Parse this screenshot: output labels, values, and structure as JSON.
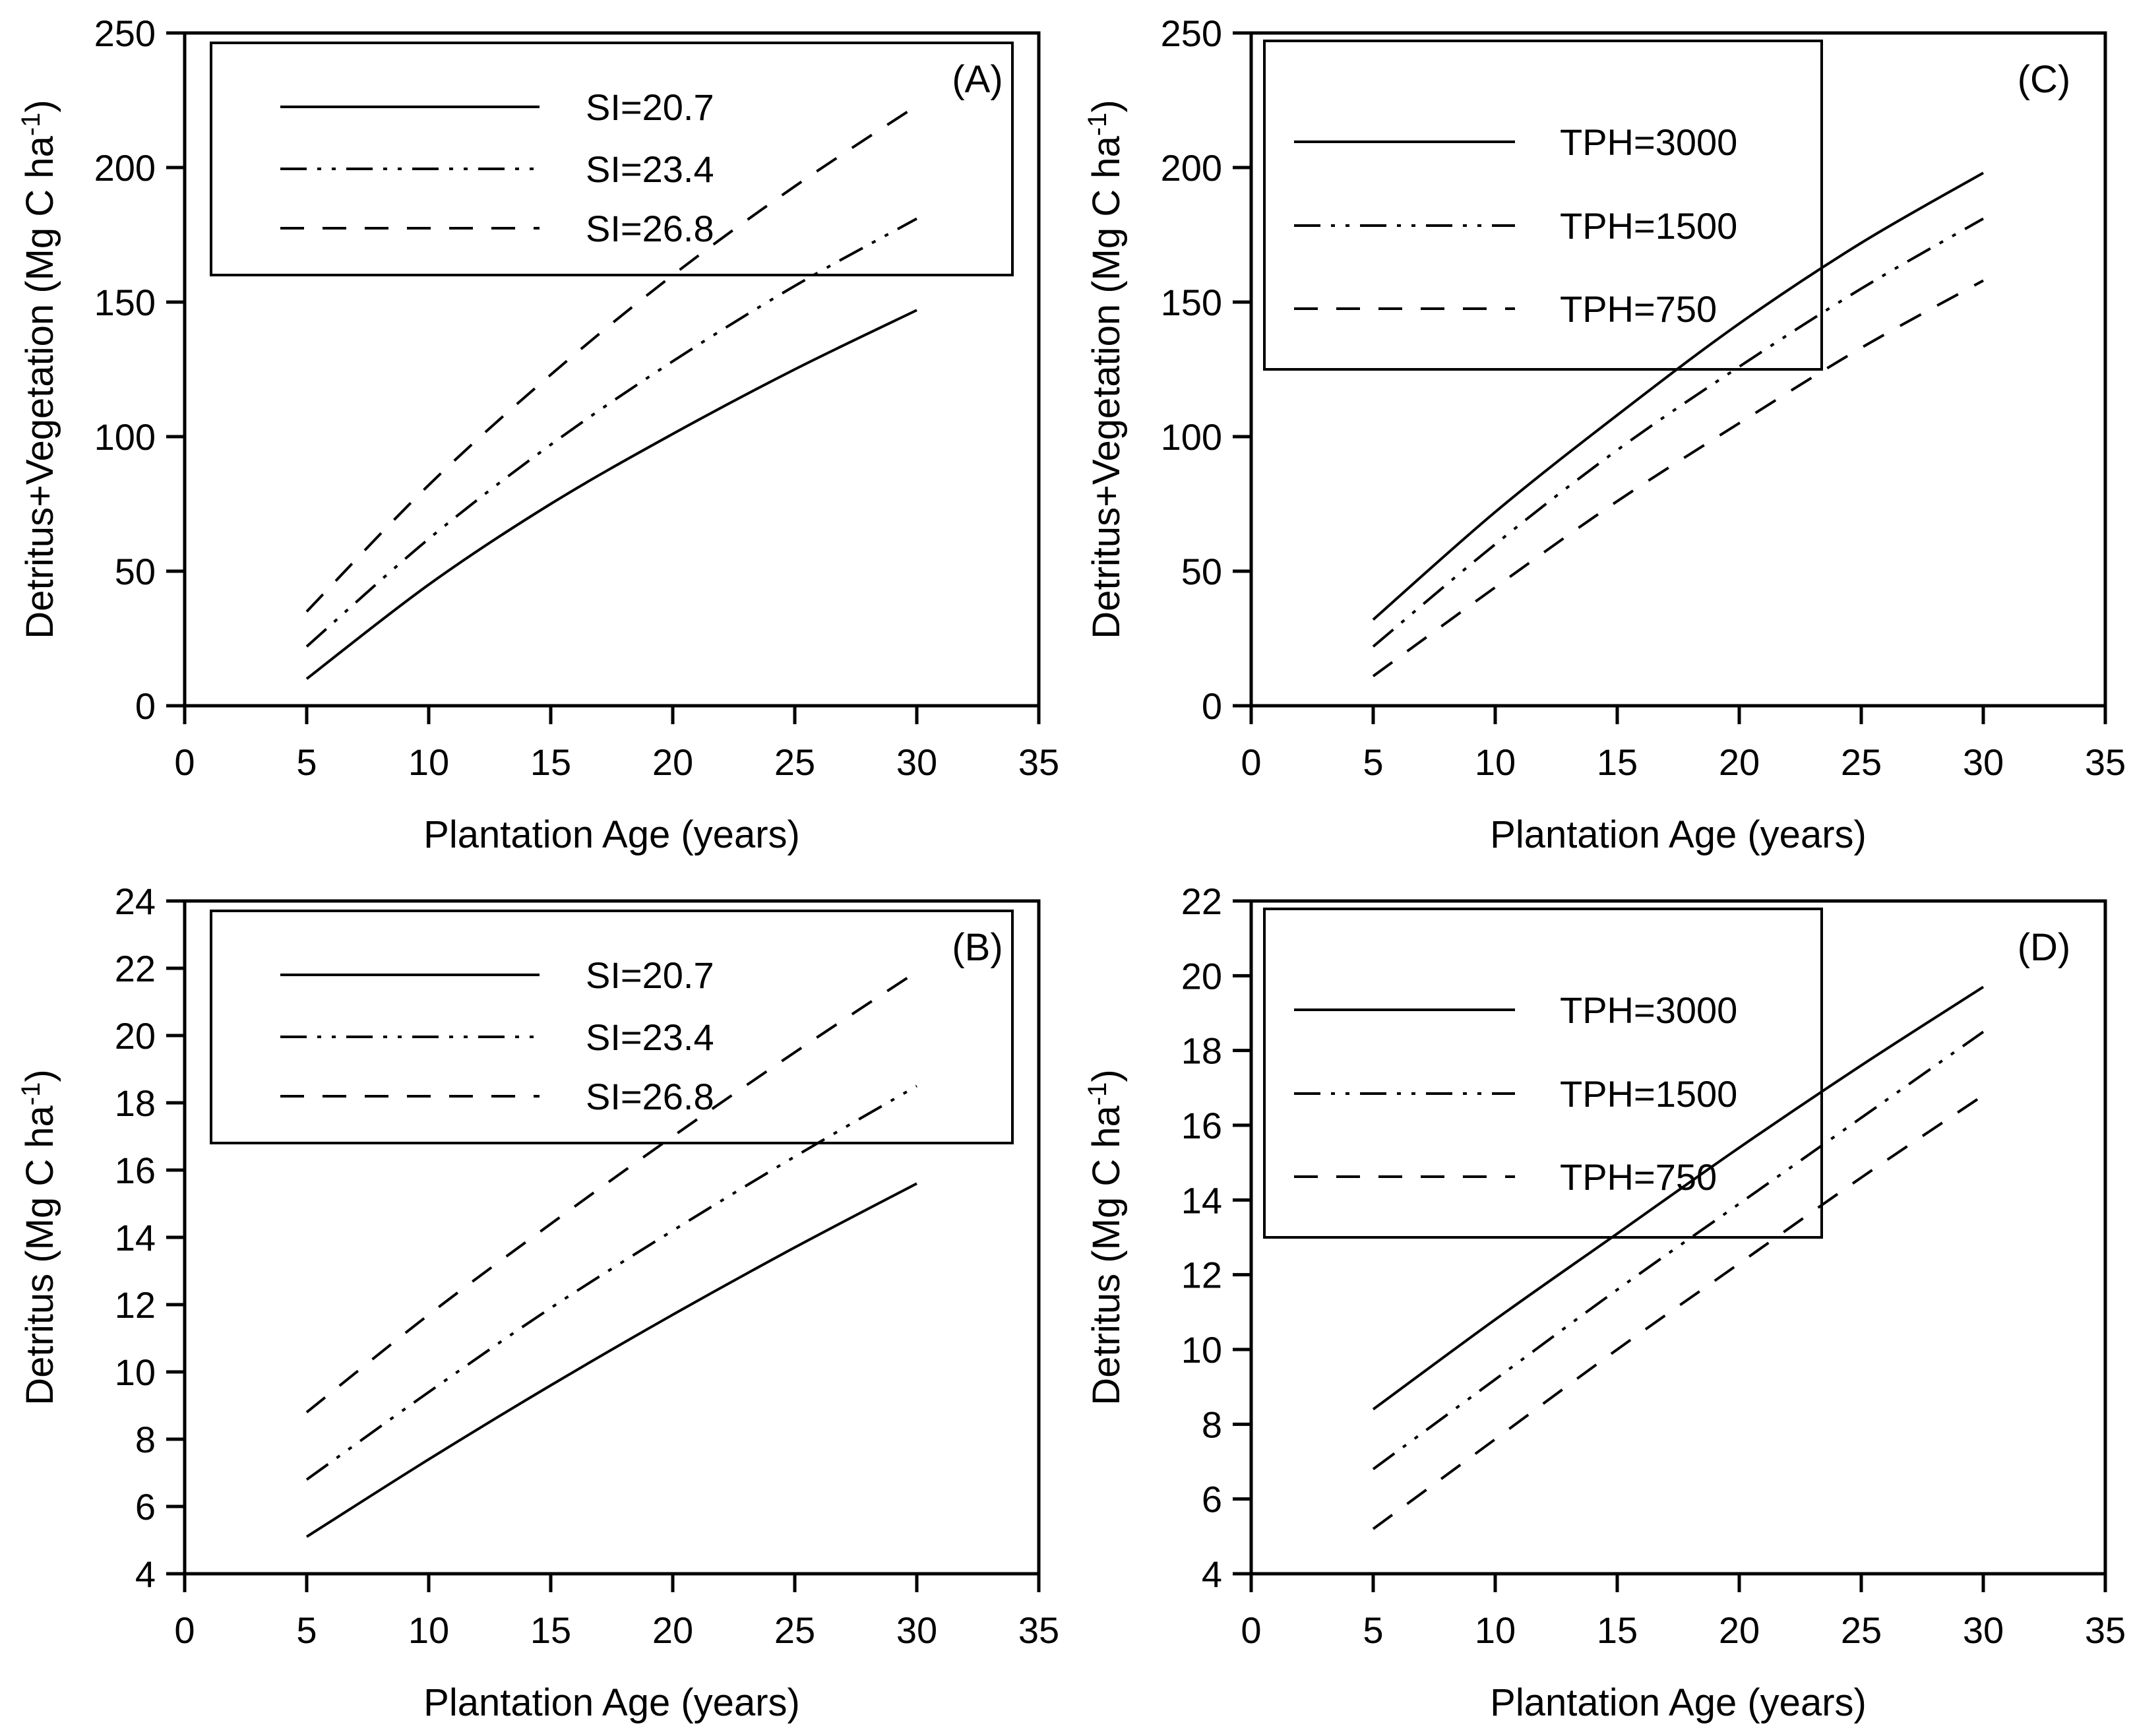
{
  "figure": {
    "background": "#ffffff",
    "line_color": "#000000",
    "description_visible_text_only": true
  },
  "chart_data": [
    {
      "type": "line",
      "panel_label": "(A)",
      "xlabel": "Plantation Age (years)",
      "ylabel": "Detritus+Vegetation  (Mg C ha-1)",
      "xlim": [
        0,
        35
      ],
      "ylim": [
        0,
        250
      ],
      "xticks": [
        0,
        5,
        10,
        15,
        20,
        25,
        30,
        35
      ],
      "yticks": [
        0,
        50,
        100,
        150,
        200,
        250
      ],
      "grid": false,
      "legend_position": "top-left",
      "x": [
        5,
        10,
        15,
        20,
        25,
        30
      ],
      "series": [
        {
          "name": "SI=20.7",
          "line_style": "solid",
          "values": [
            10,
            45,
            75,
            101,
            125,
            147
          ]
        },
        {
          "name": "SI=23.4",
          "line_style": "dash-dot-dot",
          "values": [
            22,
            62,
            97,
            128,
            156,
            181
          ]
        },
        {
          "name": "SI=26.8",
          "line_style": "dashed",
          "values": [
            35,
            82,
            123,
            160,
            193,
            223
          ]
        }
      ]
    },
    {
      "type": "line",
      "panel_label": "(C)",
      "xlabel": "Plantation Age (years)",
      "ylabel": "Detritus+Vegetation  (Mg C ha-1)",
      "xlim": [
        0,
        35
      ],
      "ylim": [
        0,
        250
      ],
      "xticks": [
        0,
        5,
        10,
        15,
        20,
        25,
        30,
        35
      ],
      "yticks": [
        0,
        50,
        100,
        150,
        200,
        250
      ],
      "grid": false,
      "legend_position": "top-left",
      "x": [
        5,
        10,
        15,
        20,
        25,
        30
      ],
      "series": [
        {
          "name": "TPH=3000",
          "line_style": "solid",
          "values": [
            32,
            72,
            108,
            142,
            172,
            198
          ]
        },
        {
          "name": "TPH=1500",
          "line_style": "dash-dot-dot",
          "values": [
            22,
            60,
            95,
            126,
            155,
            181
          ]
        },
        {
          "name": "TPH=750",
          "line_style": "dashed",
          "values": [
            11,
            44,
            76,
            105,
            133,
            158
          ]
        }
      ]
    },
    {
      "type": "line",
      "panel_label": "(B)",
      "xlabel": "Plantation Age (years)",
      "ylabel": "Detritus (Mg C ha-1)",
      "xlim": [
        0,
        35
      ],
      "ylim": [
        4,
        24
      ],
      "xticks": [
        0,
        5,
        10,
        15,
        20,
        25,
        30,
        35
      ],
      "yticks": [
        4,
        6,
        8,
        10,
        12,
        14,
        16,
        18,
        20,
        22,
        24
      ],
      "grid": false,
      "legend_position": "top-left",
      "x": [
        5,
        10,
        15,
        20,
        25,
        30
      ],
      "series": [
        {
          "name": "SI=20.7",
          "line_style": "solid",
          "values": [
            5.1,
            7.4,
            9.6,
            11.7,
            13.7,
            15.6
          ]
        },
        {
          "name": "SI=23.4",
          "line_style": "dash-dot-dot",
          "values": [
            6.8,
            9.4,
            11.9,
            14.2,
            16.4,
            18.5
          ]
        },
        {
          "name": "SI=26.8",
          "line_style": "dashed",
          "values": [
            8.8,
            11.7,
            14.4,
            17.0,
            19.5,
            21.9
          ]
        }
      ]
    },
    {
      "type": "line",
      "panel_label": "(D)",
      "xlabel": "Plantation Age (years)",
      "ylabel": "Detritus (Mg C ha-1)",
      "xlim": [
        0,
        35
      ],
      "ylim": [
        4,
        22
      ],
      "xticks": [
        0,
        5,
        10,
        15,
        20,
        25,
        30,
        35
      ],
      "yticks": [
        4,
        6,
        8,
        10,
        12,
        14,
        16,
        18,
        20,
        22
      ],
      "grid": false,
      "legend_position": "top-left",
      "x": [
        5,
        10,
        15,
        20,
        25,
        30
      ],
      "series": [
        {
          "name": "TPH=3000",
          "line_style": "solid",
          "values": [
            8.4,
            10.8,
            13.1,
            15.4,
            17.6,
            19.7
          ]
        },
        {
          "name": "TPH=1500",
          "line_style": "dash-dot-dot",
          "values": [
            6.8,
            9.2,
            11.6,
            13.9,
            16.2,
            18.5
          ]
        },
        {
          "name": "TPH=750",
          "line_style": "dashed",
          "values": [
            5.2,
            7.6,
            10.0,
            12.3,
            14.6,
            16.8
          ]
        }
      ]
    }
  ]
}
